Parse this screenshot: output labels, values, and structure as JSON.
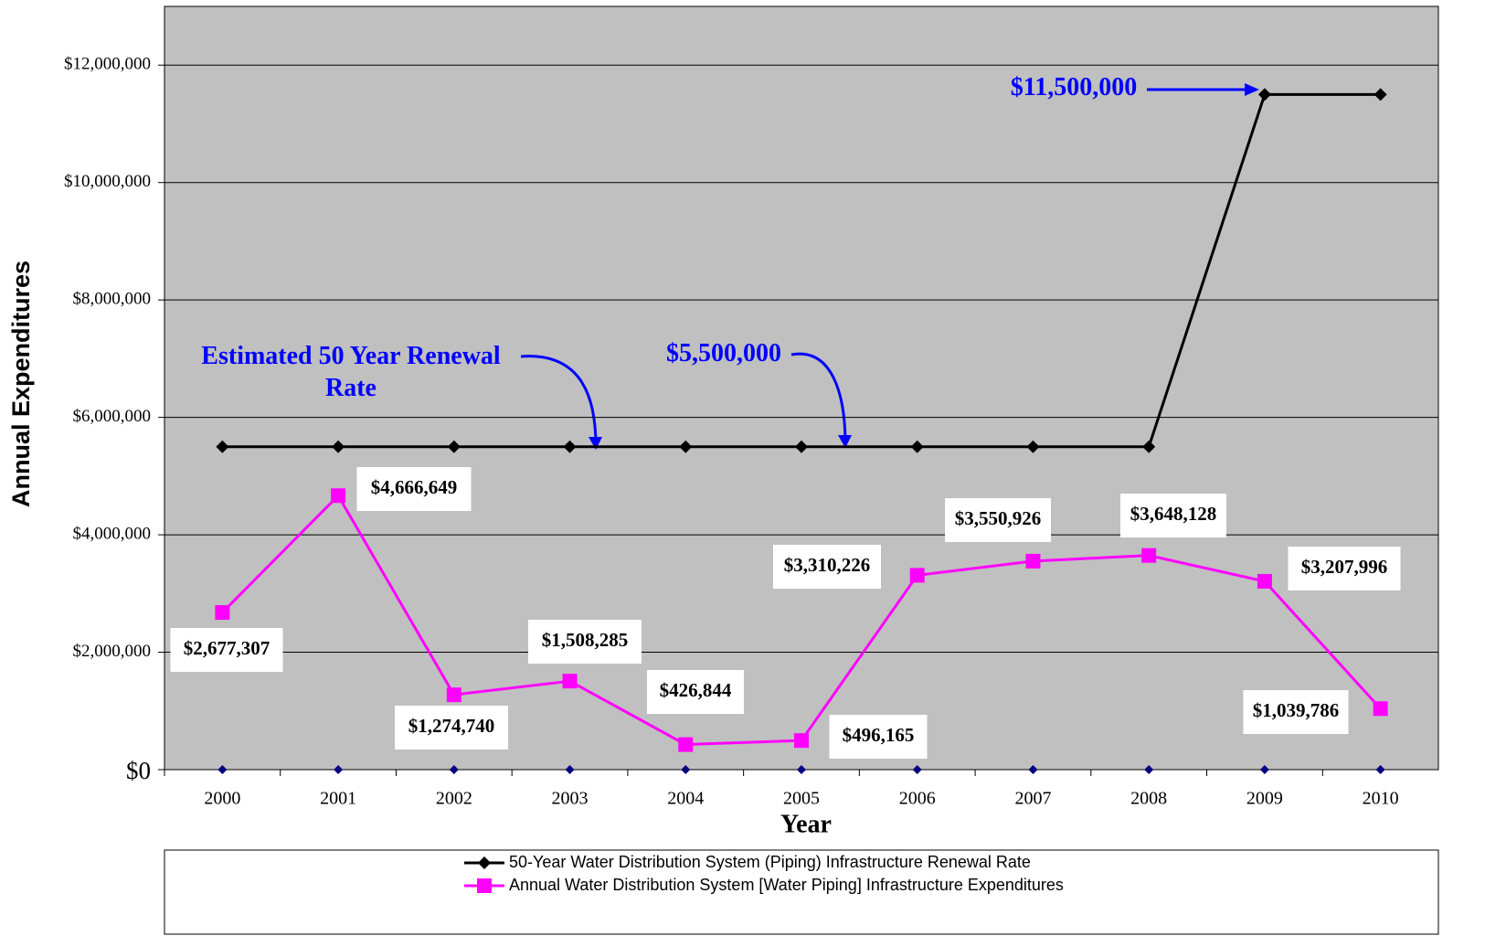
{
  "chart_data": {
    "type": "line",
    "x_label": "Year",
    "y_label": "Annual Expenditures",
    "categories": [
      "2000",
      "2001",
      "2002",
      "2003",
      "2004",
      "2005",
      "2006",
      "2007",
      "2008",
      "2009",
      "2010"
    ],
    "series": [
      {
        "name": "50-Year Water Distribution System (Piping) Infrastructure Renewal Rate",
        "color": "#000000",
        "marker": "diamond",
        "values": [
          5500000,
          5500000,
          5500000,
          5500000,
          5500000,
          5500000,
          5500000,
          5500000,
          5500000,
          11500000,
          11500000
        ]
      },
      {
        "name": "Annual Water Distribution System [Water Piping] Infrastructure Expenditures",
        "color": "#ff00ff",
        "marker": "square",
        "values": [
          2677307,
          4666649,
          1274740,
          1508285,
          426844,
          496165,
          3310226,
          3550926,
          3648128,
          3207996,
          1039786
        ],
        "value_labels": [
          "$2,677,307",
          "$4,666,649",
          "$1,274,740",
          "$1,508,285",
          "$426,844",
          "$496,165",
          "$3,310,226",
          "$3,550,926",
          "$3,648,128",
          "$3,207,996",
          "$1,039,786"
        ]
      },
      {
        "color": "#000080",
        "marker": "small-diamond",
        "values": [
          0,
          0,
          0,
          0,
          0,
          0,
          0,
          0,
          0,
          0,
          0
        ]
      }
    ],
    "ylim": [
      0,
      13000000
    ],
    "yticks": [
      {
        "value": 0,
        "label": "$0"
      },
      {
        "value": 2000000,
        "label": "$2,000,000"
      },
      {
        "value": 4000000,
        "label": "$4,000,000"
      },
      {
        "value": 6000000,
        "label": "$6,000,000"
      },
      {
        "value": 8000000,
        "label": "$8,000,000"
      },
      {
        "value": 10000000,
        "label": "$10,000,000"
      },
      {
        "value": 12000000,
        "label": "$12,000,000"
      }
    ],
    "grid": true,
    "legend": "bottom",
    "annotations": [
      "Estimated 50 Year Renewal Rate",
      "$5,500,000",
      "$11,500,000"
    ]
  }
}
